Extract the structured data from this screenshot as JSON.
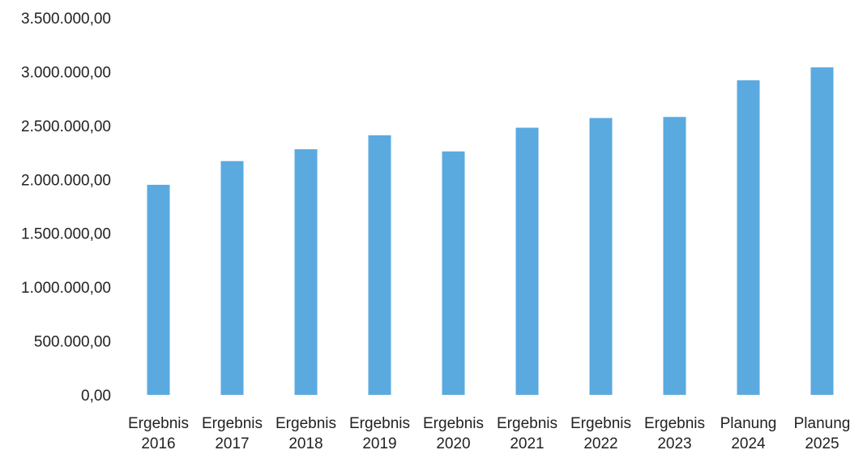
{
  "chart_data": {
    "type": "bar",
    "categories": [
      [
        "Ergebnis",
        "2016"
      ],
      [
        "Ergebnis",
        "2017"
      ],
      [
        "Ergebnis",
        "2018"
      ],
      [
        "Ergebnis",
        "2019"
      ],
      [
        "Ergebnis",
        "2020"
      ],
      [
        "Ergebnis",
        "2021"
      ],
      [
        "Ergebnis",
        "2022"
      ],
      [
        "Ergebnis",
        "2023"
      ],
      [
        "Planung",
        "2024"
      ],
      [
        "Planung",
        "2025"
      ]
    ],
    "values": [
      1950000,
      2170000,
      2280000,
      2410000,
      2260000,
      2480000,
      2570000,
      2580000,
      2920000,
      3040000
    ],
    "ylim": [
      0,
      3500000
    ],
    "yticks": [
      "0,00",
      "500.000,00",
      "1.000.000,00",
      "1.500.000,00",
      "2.000.000,00",
      "2.500.000,00",
      "3.000.000,00",
      "3.500.000,00"
    ],
    "grid": false,
    "bar_color": "#5aaae0"
  }
}
